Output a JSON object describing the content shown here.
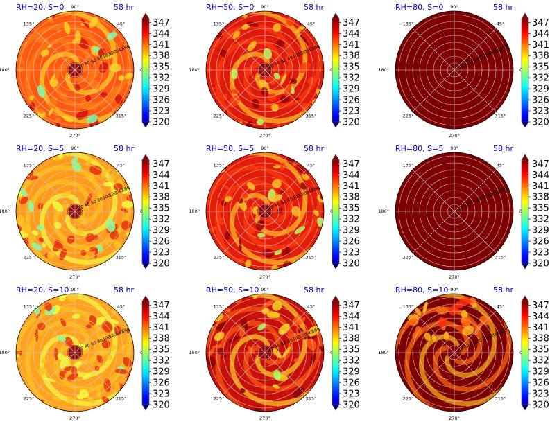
{
  "figure": {
    "colormap": "jet",
    "grid_color": "#cfcfcf",
    "title_color": "#0000cc"
  },
  "chart_data": [
    {
      "type": "heatmap",
      "projection": "polar",
      "title_left": "RH=20, S=0",
      "title_right": "58 hr",
      "dominant_color": "#ff5a10",
      "pattern": "spiral-mixed"
    },
    {
      "type": "heatmap",
      "projection": "polar",
      "title_left": "RH=50, S=0",
      "title_right": "58 hr",
      "dominant_color": "#e01a08",
      "pattern": "spiral-bands"
    },
    {
      "type": "heatmap",
      "projection": "polar",
      "title_left": "RH=80, S=0",
      "title_right": "58 hr",
      "dominant_color": "#7f0000",
      "pattern": "uniform"
    },
    {
      "type": "heatmap",
      "projection": "polar",
      "title_left": "RH=20, S=5",
      "title_right": "58 hr",
      "dominant_color": "#ff9a1a",
      "pattern": "mottled-yellow"
    },
    {
      "type": "heatmap",
      "projection": "polar",
      "title_left": "RH=50, S=5",
      "title_right": "58 hr",
      "dominant_color": "#e41c08",
      "pattern": "spiral-bands"
    },
    {
      "type": "heatmap",
      "projection": "polar",
      "title_left": "RH=80, S=5",
      "title_right": "58 hr",
      "dominant_color": "#7f0000",
      "pattern": "uniform"
    },
    {
      "type": "heatmap",
      "projection": "polar",
      "title_left": "RH=20, S=10",
      "title_right": "58 hr",
      "dominant_color": "#ffa21e",
      "pattern": "mottled-yellow"
    },
    {
      "type": "heatmap",
      "projection": "polar",
      "title_left": "RH=50, S=10",
      "title_right": "58 hr",
      "dominant_color": "#c81008",
      "pattern": "split-north"
    },
    {
      "type": "heatmap",
      "projection": "polar",
      "title_left": "RH=80, S=10",
      "title_right": "58 hr",
      "dominant_color": "#7f0000",
      "pattern": "north-patches"
    }
  ],
  "polar_axes": {
    "angle_ticks": [
      "0°",
      "45°",
      "90°",
      "135°",
      "180°",
      "225°",
      "270°",
      "315°"
    ],
    "radial_ticks": [
      "20",
      "40",
      "60",
      "80",
      "100",
      "120",
      "140",
      "160"
    ]
  },
  "colorbar": {
    "ticks": [
      "320",
      "323",
      "326",
      "329",
      "332",
      "335",
      "338",
      "341",
      "344",
      "347"
    ],
    "min": 320,
    "max": 348
  }
}
